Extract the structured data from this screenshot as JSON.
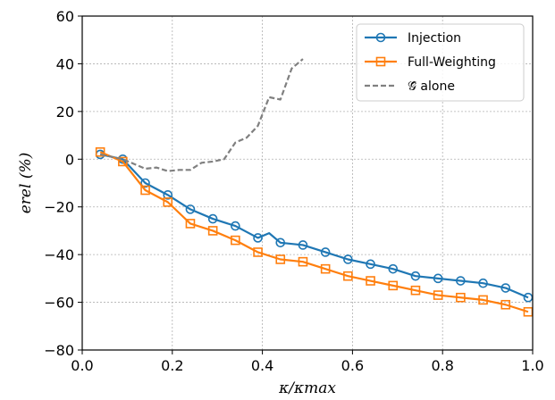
{
  "chart_data": {
    "type": "line",
    "xlabel": "κ/κmax",
    "ylabel": "erel (%)",
    "xlim": [
      0.0,
      1.0
    ],
    "ylim": [
      -80,
      60
    ],
    "xticks": [
      "0.0",
      "0.2",
      "0.4",
      "0.6",
      "0.8",
      "1.0"
    ],
    "yticks": [
      "60",
      "40",
      "20",
      "0",
      "−20",
      "−40",
      "−60",
      "−80"
    ],
    "grid": true,
    "legend_position": "top-right",
    "series": [
      {
        "name": "Injection",
        "color": "#1f77b4",
        "marker": "circle",
        "line_style": "solid",
        "x": [
          0.04,
          0.09,
          0.14,
          0.19,
          0.24,
          0.29,
          0.34,
          0.39,
          0.415,
          0.44,
          0.49,
          0.54,
          0.59,
          0.64,
          0.69,
          0.74,
          0.79,
          0.84,
          0.89,
          0.94,
          0.99
        ],
        "y": [
          2,
          0,
          -10,
          -15,
          -21,
          -25,
          -28,
          -33,
          -31,
          -35,
          -36,
          -39,
          -42,
          -44,
          -46,
          -49,
          -50,
          -51,
          -52,
          -54,
          -58
        ],
        "marker_indices": [
          0,
          1,
          2,
          3,
          4,
          5,
          6,
          7,
          9,
          10,
          11,
          12,
          13,
          14,
          15,
          16,
          17,
          18,
          19,
          20
        ]
      },
      {
        "name": "Full-Weighting",
        "color": "#ff7f0e",
        "marker": "square",
        "line_style": "solid",
        "x": [
          0.04,
          0.09,
          0.14,
          0.19,
          0.24,
          0.29,
          0.34,
          0.39,
          0.44,
          0.49,
          0.54,
          0.59,
          0.64,
          0.69,
          0.74,
          0.79,
          0.84,
          0.89,
          0.94,
          0.99
        ],
        "y": [
          3,
          -1,
          -13,
          -18,
          -27,
          -30,
          -34,
          -39,
          -42,
          -43,
          -46,
          -49,
          -51,
          -53,
          -55,
          -57,
          -58,
          -59,
          -61,
          -64
        ]
      },
      {
        "name": "𝒢̂ alone",
        "color": "#808080",
        "marker": "none",
        "line_style": "dashed",
        "x": [
          0.04,
          0.09,
          0.14,
          0.165,
          0.19,
          0.215,
          0.24,
          0.265,
          0.29,
          0.315,
          0.34,
          0.365,
          0.39,
          0.415,
          0.44,
          0.465,
          0.49
        ],
        "y": [
          2,
          0,
          -4,
          -3.5,
          -5,
          -4.5,
          -4.5,
          -1.5,
          -1,
          0,
          7,
          9,
          14,
          26,
          25,
          38,
          42
        ]
      }
    ]
  }
}
